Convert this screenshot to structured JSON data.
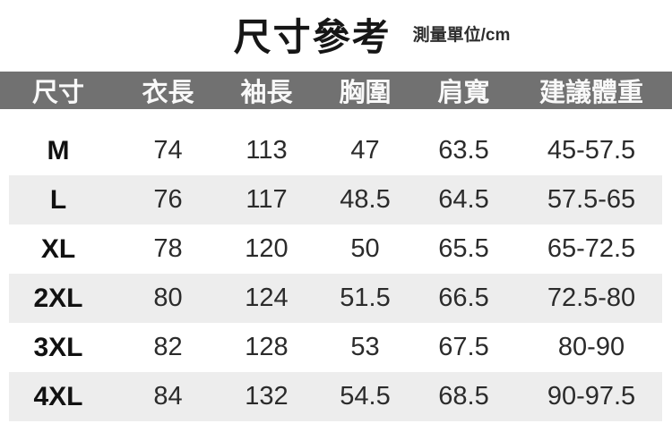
{
  "title": {
    "text": "尺寸參考",
    "unit": "測量單位/cm"
  },
  "colors": {
    "header_bg": "#717171",
    "header_text": "#f8f8f8",
    "stripe_bg": "#ededed",
    "title_text": "#161616",
    "body_text": "#2b2b2b"
  },
  "table": {
    "columns": [
      {
        "key": "size",
        "label": "尺寸"
      },
      {
        "key": "length",
        "label": "衣長"
      },
      {
        "key": "sleeve",
        "label": "袖長"
      },
      {
        "key": "chest",
        "label": "胸圍"
      },
      {
        "key": "shoulder",
        "label": "肩寬"
      },
      {
        "key": "weight",
        "label": "建議體重"
      }
    ],
    "rows": [
      {
        "size": "M",
        "length": "74",
        "sleeve": "113",
        "chest": "47",
        "shoulder": "63.5",
        "weight": "45-57.5"
      },
      {
        "size": "L",
        "length": "76",
        "sleeve": "117",
        "chest": "48.5",
        "shoulder": "64.5",
        "weight": "57.5-65"
      },
      {
        "size": "XL",
        "length": "78",
        "sleeve": "120",
        "chest": "50",
        "shoulder": "65.5",
        "weight": "65-72.5"
      },
      {
        "size": "2XL",
        "length": "80",
        "sleeve": "124",
        "chest": "51.5",
        "shoulder": "66.5",
        "weight": "72.5-80"
      },
      {
        "size": "3XL",
        "length": "82",
        "sleeve": "128",
        "chest": "53",
        "shoulder": "67.5",
        "weight": "80-90"
      },
      {
        "size": "4XL",
        "length": "84",
        "sleeve": "132",
        "chest": "54.5",
        "shoulder": "68.5",
        "weight": "90-97.5"
      }
    ]
  }
}
